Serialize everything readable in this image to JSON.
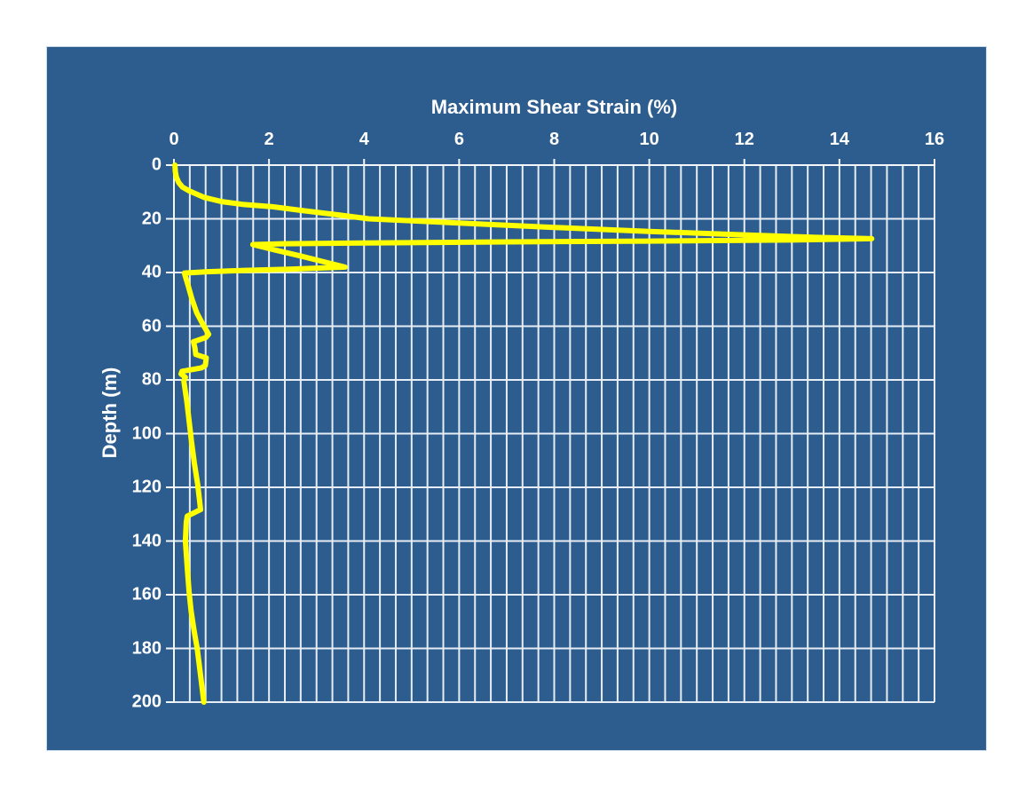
{
  "colors": {
    "page_background": "#FFFFFF",
    "panel_background": "#2C5D8E",
    "panel_border": "#C9D9E8",
    "gridline": "#E7EDF4",
    "axis": "#F4F7FA",
    "text": "#FFFFFF",
    "series": "#FFFF00"
  },
  "chart_data": {
    "type": "line",
    "title": "Maximum Shear Strain (%)",
    "xlabel": "Maximum Shear Strain (%)",
    "ylabel": "Depth (m)",
    "legend": "none",
    "grid": "on",
    "x_axis": {
      "position": "top",
      "min": 0,
      "max": 16,
      "major_tick": 2,
      "minor_gridlines_per_major": 6,
      "tick_labels": [
        "0",
        "2",
        "4",
        "6",
        "8",
        "10",
        "12",
        "14",
        "16"
      ]
    },
    "y_axis": {
      "position": "left",
      "direction": "down",
      "min": 0,
      "max": 200,
      "major_tick": 20,
      "tick_labels": [
        "0",
        "20",
        "40",
        "60",
        "80",
        "100",
        "120",
        "140",
        "160",
        "180",
        "200"
      ]
    },
    "series": [
      {
        "name": "maximum-shear-strain-profile",
        "color": "#FFFF00",
        "stroke_width": 6,
        "points_format": [
          "strain_percent",
          "depth_m"
        ],
        "points": [
          [
            0.02,
            0
          ],
          [
            0.03,
            2.5
          ],
          [
            0.05,
            4.5
          ],
          [
            0.1,
            6.5
          ],
          [
            0.18,
            8.2
          ],
          [
            0.32,
            9.6
          ],
          [
            0.63,
            12
          ],
          [
            1.0,
            13.6
          ],
          [
            1.44,
            14.6
          ],
          [
            2.07,
            15.5
          ],
          [
            2.69,
            16.9
          ],
          [
            3.31,
            18.2
          ],
          [
            4.1,
            20
          ],
          [
            6.0,
            21.6
          ],
          [
            8.0,
            23.2
          ],
          [
            10.0,
            24.7
          ],
          [
            12.0,
            26.0
          ],
          [
            13.5,
            26.9
          ],
          [
            14.68,
            27.4
          ],
          [
            13.0,
            27.9
          ],
          [
            10.0,
            28.3
          ],
          [
            7.0,
            28.6
          ],
          [
            4.0,
            29.0
          ],
          [
            2.3,
            29.3
          ],
          [
            1.66,
            29.6
          ],
          [
            2.1,
            31.5
          ],
          [
            2.65,
            33.8
          ],
          [
            3.15,
            36.0
          ],
          [
            3.6,
            38.0
          ],
          [
            2.5,
            38.7
          ],
          [
            1.5,
            39.2
          ],
          [
            0.7,
            39.7
          ],
          [
            0.22,
            40.2
          ],
          [
            0.3,
            45
          ],
          [
            0.38,
            50
          ],
          [
            0.48,
            55
          ],
          [
            0.6,
            59
          ],
          [
            0.73,
            63
          ],
          [
            0.67,
            64.2
          ],
          [
            0.41,
            65.8
          ],
          [
            0.44,
            68
          ],
          [
            0.46,
            70.5
          ],
          [
            0.68,
            71.8
          ],
          [
            0.66,
            74.6
          ],
          [
            0.58,
            75.5
          ],
          [
            0.17,
            76.8
          ],
          [
            0.15,
            77.8
          ],
          [
            0.24,
            79
          ],
          [
            0.21,
            80.5
          ],
          [
            0.27,
            88
          ],
          [
            0.33,
            97
          ],
          [
            0.37,
            103
          ],
          [
            0.43,
            111
          ],
          [
            0.5,
            119
          ],
          [
            0.54,
            125
          ],
          [
            0.56,
            128.3
          ],
          [
            0.28,
            130.7
          ],
          [
            0.26,
            133
          ],
          [
            0.24,
            140
          ],
          [
            0.28,
            150
          ],
          [
            0.32,
            159
          ],
          [
            0.36,
            166
          ],
          [
            0.42,
            173
          ],
          [
            0.49,
            180
          ],
          [
            0.56,
            190
          ],
          [
            0.63,
            200
          ]
        ]
      }
    ]
  }
}
